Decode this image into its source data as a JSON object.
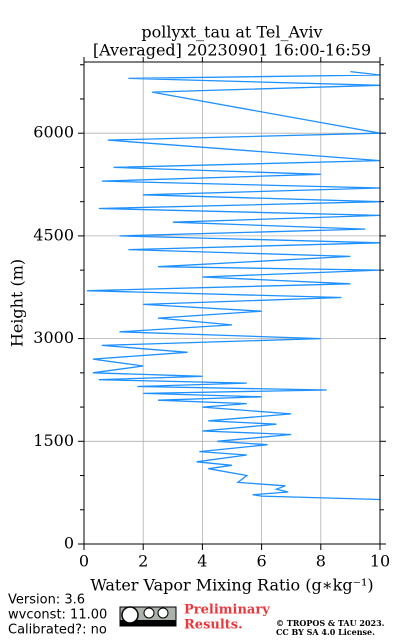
{
  "chart_data": {
    "type": "line",
    "title": [
      "pollyxt_tau at Tel_Aviv",
      "[Averaged] 20230901 16:00-16:59"
    ],
    "xlabel": "Water Vapor Mixing Ratio (g∗kg⁻¹)",
    "ylabel": "Height (m)",
    "xlim": [
      0,
      10
    ],
    "xticks": [
      0,
      2,
      4,
      6,
      8,
      10
    ],
    "ylim": [
      0,
      7040
    ],
    "yticks": [
      0,
      1500,
      3000,
      4500,
      6000
    ],
    "yticks_minor": [
      500,
      1000,
      2000,
      2500,
      3500,
      4000,
      5000,
      5500,
      6500,
      7000
    ],
    "grid": true,
    "series": [
      {
        "color": "#1e90ff",
        "y": [
          650,
          700,
          720,
          760,
          800,
          850,
          900,
          1000,
          1100,
          1150,
          1200,
          1300,
          1350,
          1450,
          1500,
          1600,
          1650,
          1750,
          1800,
          1900,
          2000,
          2050,
          2100,
          2150,
          2200,
          2250,
          2300,
          2350,
          2400,
          2450,
          2500,
          2600,
          2700,
          2800,
          2900,
          3000,
          3100,
          3200,
          3300,
          3400,
          3500,
          3600,
          3700,
          3800,
          3900,
          4000,
          4050,
          4200,
          4300,
          4400,
          4500,
          4600,
          4700,
          4800,
          4900,
          5000,
          5100,
          5200,
          5300,
          5400,
          5500,
          5600,
          5900,
          6000,
          6600,
          6700,
          6800,
          6850,
          6900
        ],
        "values": [
          10,
          6.0,
          5.7,
          6.9,
          6.5,
          6.8,
          5.2,
          5.5,
          4.2,
          5.0,
          3.8,
          5.5,
          3.9,
          6.2,
          4.5,
          7.0,
          4.0,
          6.5,
          4.2,
          7.0,
          4.0,
          5.5,
          2.5,
          6.0,
          2.0,
          8.2,
          1.8,
          5.5,
          0.5,
          4.0,
          0.3,
          2.0,
          0.3,
          3.5,
          0.6,
          8.0,
          1.2,
          5.0,
          2.5,
          6.0,
          2.0,
          8.7,
          0.1,
          9.0,
          4.0,
          10,
          2.5,
          9.0,
          1.5,
          10,
          1.2,
          9.5,
          3.0,
          10,
          0.5,
          10,
          2.0,
          10,
          0.6,
          8.0,
          1.0,
          10,
          0.8,
          10,
          2.3,
          10,
          1.5,
          10,
          9.0
        ]
      }
    ],
    "footer": {
      "version": "Version: 3.6",
      "wvconst": "wvconst:  11.00",
      "calibrated": "Calibrated?: no",
      "preliminary": [
        "Preliminary",
        "Results."
      ],
      "copyright": [
        "© TROPOS & TAU 2023.",
        "CC BY SA 4.0 License."
      ]
    }
  }
}
